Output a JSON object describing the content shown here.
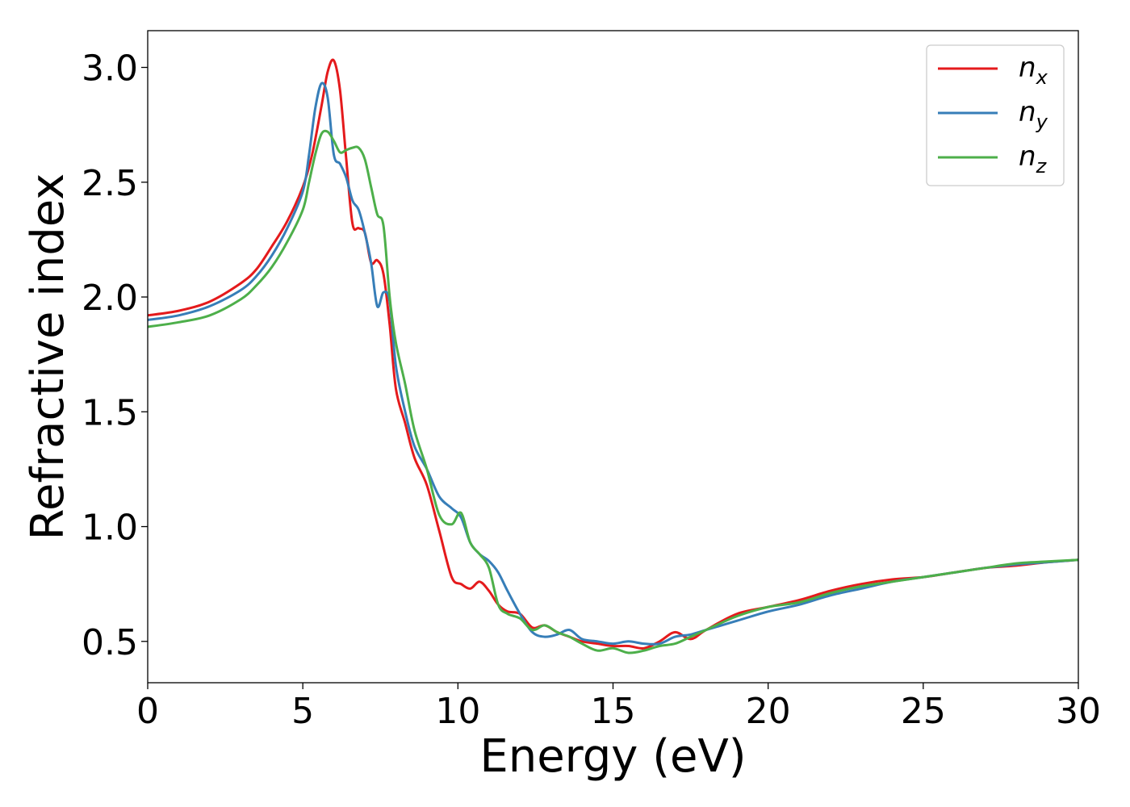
{
  "chart_data": {
    "type": "line",
    "title": "",
    "xlabel": "Energy (eV)",
    "ylabel": "Refractive index",
    "xlim": [
      0,
      30
    ],
    "ylim": [
      0.32,
      3.16
    ],
    "xticks": [
      0,
      5,
      10,
      15,
      20,
      25,
      30
    ],
    "xtick_labels": [
      "0",
      "5",
      "10",
      "15",
      "20",
      "25",
      "30"
    ],
    "yticks": [
      0.5,
      1.0,
      1.5,
      2.0,
      2.5,
      3.0
    ],
    "ytick_labels": [
      "0.5",
      "1.0",
      "1.5",
      "2.0",
      "2.5",
      "3.0"
    ],
    "grid": false,
    "legend_position": "top-right",
    "series": [
      {
        "name": "n",
        "subscript": "x",
        "color": "#e41a1c",
        "x": [
          0,
          1,
          2,
          3,
          3.5,
          4,
          4.5,
          5,
          5.3,
          5.6,
          5.8,
          6.0,
          6.2,
          6.4,
          6.6,
          6.8,
          7.0,
          7.2,
          7.4,
          7.6,
          7.8,
          8.0,
          8.3,
          8.6,
          9.0,
          9.4,
          9.8,
          10.1,
          10.4,
          10.7,
          11.0,
          11.3,
          11.6,
          12.0,
          12.4,
          12.8,
          13.2,
          13.6,
          14.0,
          14.5,
          15.0,
          15.5,
          16.0,
          16.5,
          17.0,
          17.5,
          18.0,
          19.0,
          20.0,
          21.0,
          22.0,
          23.0,
          24.0,
          25.0,
          26.0,
          27.0,
          28.0,
          29.0,
          30.0
        ],
        "y": [
          1.92,
          1.94,
          1.98,
          2.06,
          2.12,
          2.22,
          2.33,
          2.48,
          2.62,
          2.83,
          2.98,
          3.03,
          2.9,
          2.6,
          2.32,
          2.3,
          2.28,
          2.15,
          2.16,
          2.1,
          1.88,
          1.6,
          1.45,
          1.3,
          1.18,
          0.98,
          0.78,
          0.75,
          0.73,
          0.76,
          0.72,
          0.66,
          0.63,
          0.62,
          0.56,
          0.57,
          0.54,
          0.52,
          0.5,
          0.49,
          0.48,
          0.48,
          0.47,
          0.5,
          0.54,
          0.51,
          0.55,
          0.62,
          0.65,
          0.68,
          0.72,
          0.75,
          0.77,
          0.78,
          0.8,
          0.82,
          0.83,
          0.845,
          0.855
        ]
      },
      {
        "name": "n",
        "subscript": "y",
        "color": "#377eb8",
        "x": [
          0,
          1,
          2,
          3,
          3.5,
          4,
          4.5,
          5,
          5.2,
          5.4,
          5.6,
          5.8,
          6.0,
          6.2,
          6.4,
          6.6,
          6.8,
          7.0,
          7.2,
          7.4,
          7.6,
          7.8,
          8.0,
          8.3,
          8.6,
          9.0,
          9.4,
          9.8,
          10.1,
          10.4,
          10.7,
          11.0,
          11.3,
          11.6,
          12.0,
          12.4,
          12.8,
          13.2,
          13.6,
          14.0,
          14.5,
          15.0,
          15.5,
          16.0,
          16.5,
          17.0,
          17.5,
          18.0,
          19.0,
          20.0,
          21.0,
          22.0,
          23.0,
          24.0,
          25.0,
          26.0,
          27.0,
          28.0,
          29.0,
          30.0
        ],
        "y": [
          1.9,
          1.92,
          1.96,
          2.03,
          2.09,
          2.18,
          2.3,
          2.46,
          2.62,
          2.82,
          2.93,
          2.87,
          2.62,
          2.58,
          2.52,
          2.42,
          2.38,
          2.28,
          2.15,
          1.96,
          2.02,
          1.98,
          1.7,
          1.5,
          1.35,
          1.25,
          1.13,
          1.08,
          1.04,
          0.93,
          0.88,
          0.85,
          0.8,
          0.72,
          0.62,
          0.54,
          0.52,
          0.53,
          0.55,
          0.51,
          0.5,
          0.49,
          0.5,
          0.49,
          0.49,
          0.52,
          0.53,
          0.55,
          0.59,
          0.63,
          0.66,
          0.7,
          0.73,
          0.76,
          0.78,
          0.8,
          0.82,
          0.835,
          0.845,
          0.855
        ]
      },
      {
        "name": "n",
        "subscript": "z",
        "color": "#4daf4a",
        "x": [
          0,
          1,
          2,
          3,
          3.5,
          4,
          4.5,
          5,
          5.2,
          5.4,
          5.6,
          5.8,
          6.0,
          6.2,
          6.4,
          6.6,
          6.8,
          7.0,
          7.2,
          7.4,
          7.6,
          7.8,
          8.0,
          8.3,
          8.6,
          9.0,
          9.4,
          9.8,
          10.1,
          10.4,
          10.7,
          11.0,
          11.3,
          11.6,
          12.0,
          12.4,
          12.8,
          13.2,
          13.6,
          14.0,
          14.5,
          15.0,
          15.5,
          16.0,
          16.5,
          17.0,
          17.5,
          18.0,
          19.0,
          20.0,
          21.0,
          22.0,
          23.0,
          24.0,
          25.0,
          26.0,
          27.0,
          28.0,
          29.0,
          30.0
        ],
        "y": [
          1.87,
          1.89,
          1.92,
          1.99,
          2.05,
          2.13,
          2.24,
          2.38,
          2.5,
          2.62,
          2.71,
          2.72,
          2.68,
          2.63,
          2.64,
          2.65,
          2.65,
          2.6,
          2.48,
          2.36,
          2.31,
          2.0,
          1.8,
          1.62,
          1.42,
          1.25,
          1.05,
          1.01,
          1.06,
          0.93,
          0.88,
          0.82,
          0.66,
          0.62,
          0.6,
          0.55,
          0.57,
          0.54,
          0.52,
          0.49,
          0.46,
          0.47,
          0.45,
          0.46,
          0.48,
          0.49,
          0.52,
          0.55,
          0.61,
          0.65,
          0.67,
          0.71,
          0.74,
          0.76,
          0.78,
          0.8,
          0.82,
          0.84,
          0.848,
          0.855
        ]
      }
    ]
  }
}
